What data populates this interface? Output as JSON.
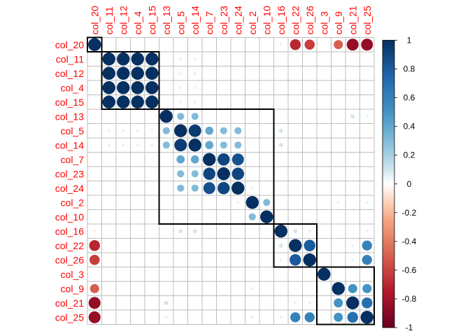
{
  "chart_data": {
    "type": "corrplot",
    "method": "circle",
    "order": "hclust",
    "variables": [
      "col_20",
      "col_11",
      "col_12",
      "col_4",
      "col_15",
      "col_13",
      "col_5",
      "col_14",
      "col_7",
      "col_23",
      "col_24",
      "col_2",
      "col_10",
      "col_16",
      "col_22",
      "col_26",
      "col_3",
      "col_9",
      "col_21",
      "col_25"
    ],
    "correlation_matrix": [
      [
        1.0,
        0.0,
        0.0,
        0.0,
        0.0,
        0.02,
        0.0,
        0.0,
        0.0,
        0.0,
        0.0,
        0.0,
        0.0,
        -0.05,
        -0.7,
        -0.62,
        0.0,
        -0.5,
        -0.85,
        -0.85
      ],
      [
        0.0,
        1.0,
        1.0,
        1.0,
        1.0,
        0.0,
        0.05,
        0.05,
        0.02,
        0.0,
        0.0,
        0.0,
        0.0,
        0.0,
        0.0,
        0.0,
        0.0,
        0.0,
        0.0,
        0.0
      ],
      [
        0.0,
        1.0,
        1.0,
        1.0,
        1.0,
        0.0,
        0.05,
        0.05,
        0.02,
        0.0,
        0.0,
        0.0,
        0.0,
        0.0,
        0.0,
        0.0,
        0.0,
        0.0,
        0.0,
        0.0
      ],
      [
        0.0,
        1.0,
        1.0,
        1.0,
        1.0,
        0.0,
        0.05,
        0.05,
        0.02,
        0.0,
        0.0,
        0.0,
        0.0,
        0.0,
        0.0,
        0.0,
        0.0,
        0.0,
        0.0,
        0.0
      ],
      [
        0.0,
        1.0,
        1.0,
        1.0,
        1.0,
        0.0,
        0.05,
        0.05,
        0.02,
        0.0,
        0.0,
        0.0,
        0.0,
        0.0,
        0.0,
        0.0,
        0.0,
        0.0,
        0.0,
        0.0
      ],
      [
        0.02,
        0.0,
        0.0,
        0.0,
        0.0,
        1.0,
        0.3,
        0.3,
        0.0,
        0.0,
        0.0,
        0.0,
        0.0,
        0.0,
        0.0,
        0.0,
        0.0,
        0.02,
        0.1,
        0.05
      ],
      [
        0.0,
        0.05,
        0.05,
        0.05,
        0.05,
        0.3,
        1.0,
        0.95,
        0.4,
        0.3,
        0.3,
        0.0,
        0.0,
        0.1,
        0.0,
        0.0,
        0.0,
        0.0,
        0.0,
        0.0
      ],
      [
        0.0,
        0.05,
        0.05,
        0.05,
        0.05,
        0.3,
        0.95,
        1.0,
        0.4,
        0.3,
        0.3,
        0.0,
        0.0,
        0.1,
        0.0,
        0.0,
        0.0,
        0.0,
        0.0,
        0.0
      ],
      [
        0.0,
        0.02,
        0.02,
        0.02,
        0.02,
        0.0,
        0.4,
        0.4,
        1.0,
        0.9,
        0.85,
        0.02,
        0.02,
        0.0,
        0.0,
        0.0,
        0.0,
        0.0,
        0.0,
        0.0
      ],
      [
        0.0,
        0.0,
        0.0,
        0.0,
        0.0,
        0.0,
        0.3,
        0.3,
        0.9,
        1.0,
        0.9,
        0.02,
        0.02,
        0.0,
        0.0,
        0.0,
        0.0,
        0.0,
        0.0,
        0.0
      ],
      [
        0.0,
        0.0,
        0.0,
        0.0,
        0.0,
        0.0,
        0.3,
        0.3,
        0.85,
        0.9,
        1.0,
        0.05,
        0.02,
        0.0,
        0.0,
        0.0,
        0.0,
        0.0,
        0.0,
        0.0
      ],
      [
        0.0,
        0.0,
        0.0,
        0.0,
        0.0,
        0.0,
        0.0,
        0.0,
        0.02,
        0.02,
        0.05,
        1.0,
        0.3,
        0.0,
        0.0,
        0.0,
        0.0,
        0.05,
        0.0,
        0.05
      ],
      [
        0.0,
        0.0,
        0.0,
        0.0,
        0.0,
        0.0,
        0.0,
        0.0,
        0.02,
        0.02,
        0.02,
        0.3,
        1.0,
        0.0,
        0.0,
        0.0,
        0.0,
        0.0,
        0.0,
        0.0
      ],
      [
        -0.05,
        0.0,
        0.0,
        0.0,
        0.0,
        0.0,
        0.1,
        0.1,
        0.0,
        0.0,
        0.0,
        0.0,
        0.0,
        1.0,
        0.1,
        0.05,
        0.0,
        0.0,
        0.02,
        0.05
      ],
      [
        -0.7,
        0.0,
        0.0,
        0.0,
        0.0,
        0.0,
        0.0,
        0.0,
        0.0,
        0.0,
        0.0,
        0.0,
        0.0,
        0.1,
        1.0,
        0.8,
        0.0,
        0.02,
        0.05,
        0.6
      ],
      [
        -0.62,
        0.0,
        0.0,
        0.0,
        0.0,
        0.0,
        0.0,
        0.0,
        0.0,
        0.0,
        0.0,
        0.0,
        0.0,
        0.05,
        0.8,
        1.0,
        0.0,
        0.02,
        0.05,
        0.6
      ],
      [
        0.0,
        0.0,
        0.0,
        0.0,
        0.0,
        0.0,
        0.0,
        0.0,
        0.0,
        0.0,
        0.0,
        0.0,
        0.0,
        0.0,
        0.0,
        0.0,
        1.0,
        0.0,
        0.0,
        0.0
      ],
      [
        -0.5,
        0.0,
        0.0,
        0.0,
        0.0,
        0.02,
        0.0,
        0.0,
        0.0,
        0.0,
        0.0,
        0.05,
        0.0,
        0.0,
        0.02,
        0.02,
        0.0,
        1.0,
        0.5,
        0.5
      ],
      [
        -0.85,
        0.0,
        0.0,
        0.0,
        0.0,
        0.1,
        0.0,
        0.0,
        0.0,
        0.0,
        0.0,
        0.0,
        0.0,
        0.02,
        0.05,
        0.05,
        0.0,
        0.5,
        1.0,
        0.7
      ],
      [
        -0.85,
        0.0,
        0.0,
        0.0,
        0.0,
        0.05,
        0.0,
        0.0,
        0.0,
        0.0,
        0.0,
        0.05,
        0.0,
        0.05,
        0.6,
        0.6,
        0.0,
        0.5,
        0.7,
        1.0
      ]
    ],
    "cluster_rects": [
      {
        "start": 0,
        "end": 0
      },
      {
        "start": 1,
        "end": 4
      },
      {
        "start": 5,
        "end": 12
      },
      {
        "start": 13,
        "end": 15
      },
      {
        "start": 16,
        "end": 19
      }
    ],
    "colorbar": {
      "range": [
        -1,
        1
      ],
      "tick_values": [
        1,
        0.8,
        0.6,
        0.4,
        0.2,
        0,
        -0.2,
        -0.4,
        -0.6,
        -0.8,
        -1
      ],
      "tick_labels": [
        "1",
        "0.8",
        "0.6",
        "0.4",
        "0.2",
        "0",
        "-0.2",
        "-0.4",
        "-0.6",
        "-0.8",
        "-1"
      ]
    },
    "colors": {
      "label": "#ff0000",
      "grid": "#bebebe",
      "positive_end": "#053061",
      "negative_end": "#67001f",
      "neutral": "#ffffff"
    }
  }
}
